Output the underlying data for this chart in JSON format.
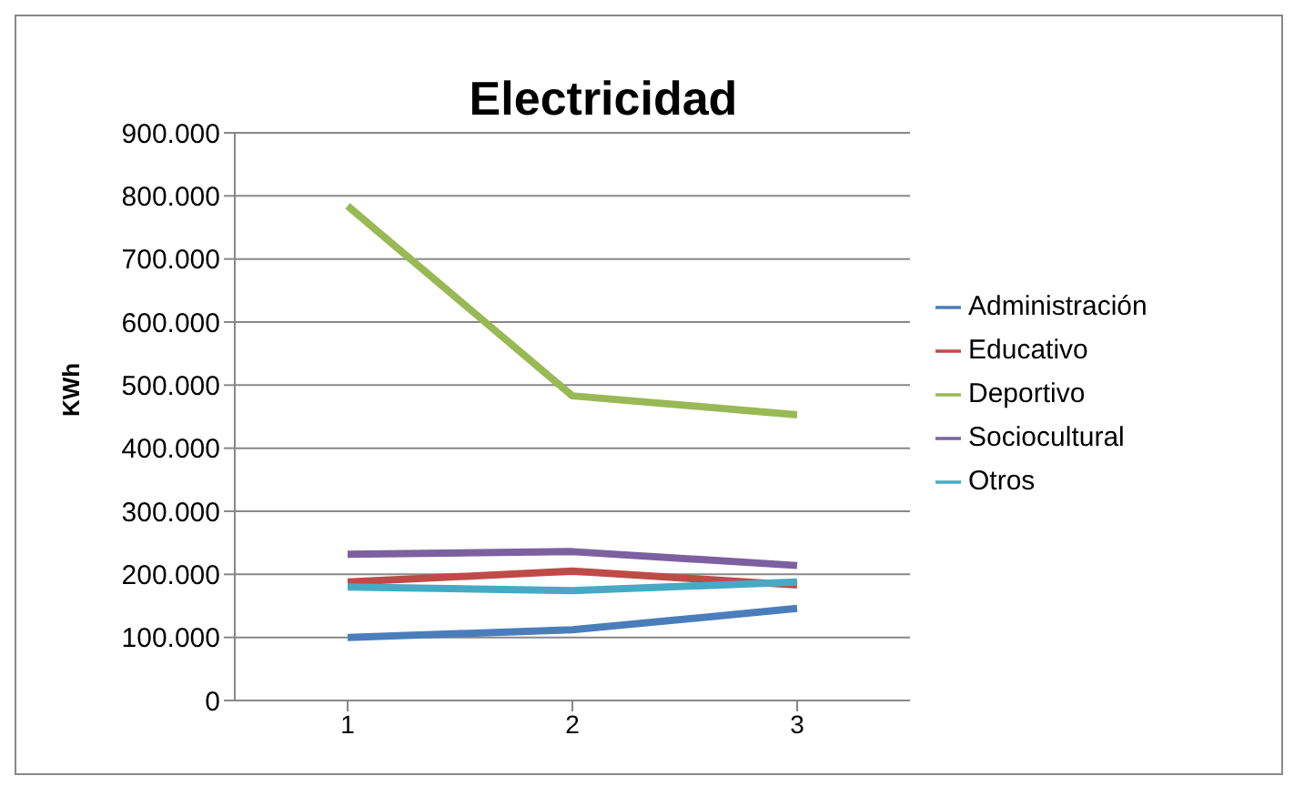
{
  "chart_data": {
    "type": "line",
    "title": "Electricidad",
    "ylabel": "KWh",
    "categories": [
      "1",
      "2",
      "3"
    ],
    "series": [
      {
        "name": "Administración",
        "color": "#4a7ebb",
        "values": [
          100000,
          112000,
          146000
        ]
      },
      {
        "name": "Educativo",
        "color": "#be4b48",
        "values": [
          188000,
          205000,
          183000
        ]
      },
      {
        "name": "Deportivo",
        "color": "#98b954",
        "values": [
          784000,
          483000,
          453000
        ]
      },
      {
        "name": "Sociocultural",
        "color": "#7d60a0",
        "values": [
          232000,
          236000,
          214000
        ]
      },
      {
        "name": "Otros",
        "color": "#46aac5",
        "values": [
          180000,
          174000,
          188000
        ]
      }
    ],
    "ylim": [
      0,
      900000
    ],
    "yticks": [
      {
        "value": 0,
        "label": "0"
      },
      {
        "value": 100000,
        "label": "100.000"
      },
      {
        "value": 200000,
        "label": "200.000"
      },
      {
        "value": 300000,
        "label": "300.000"
      },
      {
        "value": 400000,
        "label": "400.000"
      },
      {
        "value": 500000,
        "label": "500.000"
      },
      {
        "value": 600000,
        "label": "600.000"
      },
      {
        "value": 700000,
        "label": "700.000"
      },
      {
        "value": 800000,
        "label": "800.000"
      },
      {
        "value": 900000,
        "label": "900.000"
      }
    ],
    "grid": "y",
    "legend": "right",
    "marker": "none",
    "line_style": "solid"
  }
}
